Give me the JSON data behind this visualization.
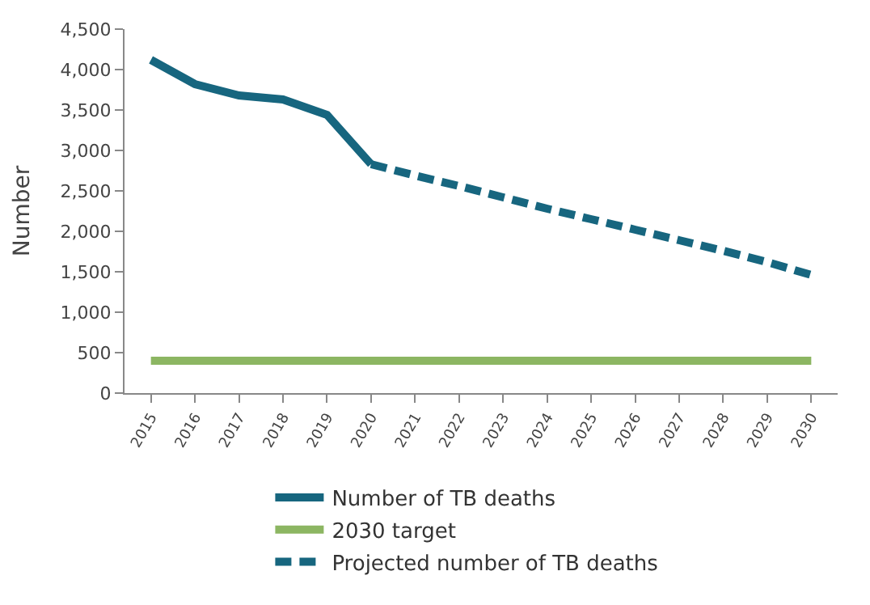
{
  "chart_data": {
    "type": "line",
    "ylabel": "Number",
    "categories": [
      "2015",
      "2016",
      "2017",
      "2018",
      "2019",
      "2020",
      "2021",
      "2022",
      "2023",
      "2024",
      "2025",
      "2026",
      "2027",
      "2028",
      "2029",
      "2030"
    ],
    "series": [
      {
        "name": "Number of TB deaths",
        "color": "#17667f",
        "line_style": "solid",
        "values": [
          4120,
          3820,
          3680,
          3630,
          3440,
          2830,
          null,
          null,
          null,
          null,
          null,
          null,
          null,
          null,
          null,
          null
        ]
      },
      {
        "name": "2030 target",
        "color": "#8cb662",
        "line_style": "solid",
        "values": [
          400,
          400,
          400,
          400,
          400,
          400,
          400,
          400,
          400,
          400,
          400,
          400,
          400,
          400,
          400,
          400
        ]
      },
      {
        "name": "Projected number of TB deaths",
        "color": "#17667f",
        "line_style": "dashed",
        "values": [
          null,
          null,
          null,
          null,
          null,
          2830,
          2690,
          2560,
          2420,
          2280,
          2150,
          2020,
          1890,
          1760,
          1620,
          1460
        ]
      }
    ],
    "ylim": [
      0,
      4500
    ],
    "yticks": [
      {
        "value": 0,
        "label": "0"
      },
      {
        "value": 500,
        "label": "500"
      },
      {
        "value": 1000,
        "label": "1,000"
      },
      {
        "value": 1500,
        "label": "1,500"
      },
      {
        "value": 2000,
        "label": "2,000"
      },
      {
        "value": 2500,
        "label": "2,500"
      },
      {
        "value": 3000,
        "label": "3,000"
      },
      {
        "value": 3500,
        "label": "3,500"
      },
      {
        "value": 4000,
        "label": "4,000"
      },
      {
        "value": 4500,
        "label": "4,500"
      }
    ],
    "legend": "bottom",
    "marker": "none"
  }
}
